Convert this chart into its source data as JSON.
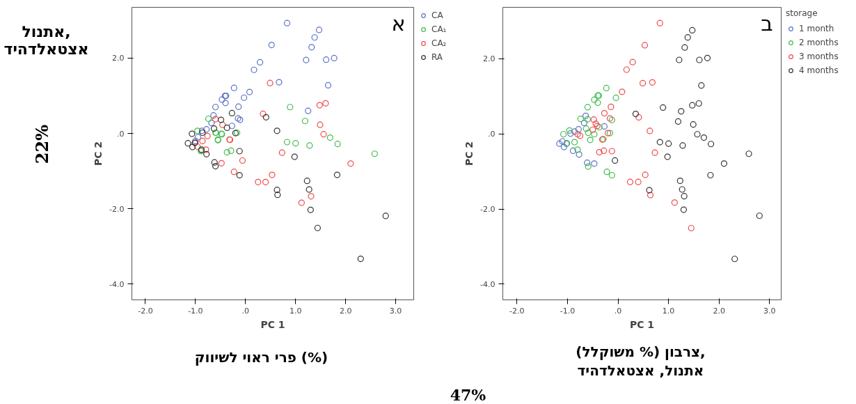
{
  "chart_data": [
    {
      "type": "scatter",
      "title": "א",
      "xlabel": "PC 1",
      "ylabel": "PC 2",
      "marker": "circle",
      "grid": false,
      "legend": "right",
      "xlim": [
        -2.27,
        3.36
      ],
      "ylim": [
        -4.42,
        3.35
      ],
      "xticks": [
        {
          "value": -2,
          "label": "-2.0"
        },
        {
          "value": -1,
          "label": "-1.0"
        },
        {
          "value": 0,
          "label": ".0"
        },
        {
          "value": 1,
          "label": "1.0"
        },
        {
          "value": 2,
          "label": "2.0"
        },
        {
          "value": 3,
          "label": "3.0"
        }
      ],
      "yticks": [
        {
          "value": -4,
          "label": "-4.0"
        },
        {
          "value": -2,
          "label": "-2.0"
        },
        {
          "value": 0,
          "label": ".0"
        },
        {
          "value": 2,
          "label": "2.0"
        }
      ],
      "annotations": [
        "אתנול,\nאצטאלדהיד",
        "22%",
        "פרי ראוי לשיווק (%)",
        "47%"
      ],
      "series": [
        {
          "name": "CA",
          "color": "#5a6fc6",
          "x": [
            0.83,
            1.47,
            1.38,
            0.52,
            1.32,
            1.21,
            1.61,
            1.77,
            0.29,
            0.17,
            0.67,
            1.65,
            -0.23,
            0.08,
            -0.39,
            -0.41,
            -0.47,
            -0.03,
            -0.4,
            -0.6,
            -0.14,
            1.25,
            -0.64,
            -0.15,
            -0.11,
            -0.68,
            -0.27,
            -0.78,
            -0.87,
            -1.0,
            -0.95
          ],
          "values": [
            2.93,
            2.75,
            2.55,
            2.35,
            2.29,
            1.95,
            1.96,
            2.0,
            1.89,
            1.69,
            1.36,
            1.28,
            1.21,
            1.1,
            1.0,
            1.0,
            0.9,
            0.95,
            0.81,
            0.7,
            0.71,
            0.6,
            0.48,
            0.4,
            0.36,
            0.28,
            0.2,
            0.11,
            0.07,
            -0.2,
            -0.1
          ]
        },
        {
          "name": "CA₁",
          "color": "#3dbb4c",
          "x": [
            0.89,
            1.19,
            -0.74,
            1.69,
            0.83,
            1.0,
            1.28,
            1.84,
            2.58,
            -0.37,
            -0.29,
            -0.55,
            -0.89,
            -0.55,
            -0.47,
            -0.6,
            -0.17,
            -0.96,
            -0.88,
            -0.48,
            -0.59
          ],
          "values": [
            0.7,
            0.33,
            0.39,
            -0.11,
            -0.23,
            -0.26,
            -0.32,
            -0.28,
            -0.54,
            -0.5,
            -0.46,
            -0.18,
            -0.47,
            -0.16,
            -0.02,
            0.02,
            0.02,
            0.07,
            -0.45,
            -0.01,
            0.02
          ]
        },
        {
          "name": "CA₂",
          "color": "#f04848",
          "x": [
            0.49,
            1.48,
            1.6,
            0.35,
            1.49,
            1.56,
            -0.6,
            -0.46,
            -0.76,
            -0.31,
            -0.86,
            0.73,
            2.1,
            -0.48,
            -0.06,
            -0.23,
            0.53,
            0.25,
            0.4,
            1.31,
            1.12,
            -0.79,
            -1.01,
            -0.96,
            -0.32
          ],
          "values": [
            1.34,
            0.75,
            0.8,
            0.52,
            0.23,
            -0.02,
            0.38,
            0.23,
            -0.07,
            -0.17,
            -0.2,
            -0.51,
            -0.8,
            -0.79,
            -0.72,
            -1.02,
            -1.1,
            -1.29,
            -1.29,
            -1.67,
            -1.84,
            -0.43,
            -0.25,
            -0.35,
            -0.16
          ]
        },
        {
          "name": "RA",
          "color": "#333333",
          "x": [
            -0.27,
            0.41,
            -0.49,
            0.63,
            -0.63,
            -0.37,
            -0.2,
            -0.86,
            -1.07,
            -1.15,
            -1.01,
            -1.06,
            -0.88,
            -0.78,
            -0.12,
            0.98,
            -0.62,
            -0.6,
            -0.12,
            1.83,
            1.23,
            1.27,
            0.63,
            0.64,
            1.3,
            1.44,
            2.8,
            2.3
          ],
          "values": [
            0.54,
            0.43,
            0.36,
            0.07,
            0.13,
            0.15,
            0.01,
            0.02,
            -0.01,
            -0.26,
            -0.25,
            -0.36,
            -0.43,
            -0.55,
            -0.47,
            -0.62,
            -0.77,
            -0.87,
            -1.11,
            -1.1,
            -1.26,
            -1.49,
            -1.5,
            -1.63,
            -2.03,
            -2.51,
            -2.19,
            -3.33
          ]
        }
      ]
    },
    {
      "type": "scatter",
      "title": "ב",
      "xlabel": "PC 1",
      "ylabel": "PC 2",
      "legend_title": "storage",
      "marker": "circle",
      "grid": false,
      "legend": "right",
      "xlim": [
        -2.28,
        3.23
      ],
      "ylim": [
        -4.42,
        3.37
      ],
      "xticks": [
        {
          "value": -2,
          "label": "-2.0"
        },
        {
          "value": -1,
          "label": "-1.0"
        },
        {
          "value": 0,
          "label": ".0"
        },
        {
          "value": 1,
          "label": "1.0"
        },
        {
          "value": 2,
          "label": "2.0"
        },
        {
          "value": 3,
          "label": "3.0"
        }
      ],
      "yticks": [
        {
          "value": -4,
          "label": "-4.0"
        },
        {
          "value": -2,
          "label": "-2.0"
        },
        {
          "value": 0,
          "label": ".0"
        },
        {
          "value": 2,
          "label": "2.0"
        }
      ],
      "annotations": [
        "צרבון (% משוקלל),\nאתנול, אצטאלדהיד"
      ],
      "series": [
        {
          "name": "1 month",
          "color": "#5a6fc6",
          "x": [
            -0.64,
            -0.67,
            -0.27,
            -0.78,
            -0.86,
            -0.94,
            -1.16,
            -1.07,
            -1.1,
            -1.02,
            -0.89,
            -0.77,
            -0.61,
            -0.47
          ],
          "values": [
            0.48,
            0.29,
            0.2,
            0.12,
            0.06,
            0.01,
            -0.26,
            -0.35,
            -0.2,
            -0.26,
            -0.45,
            -0.55,
            -0.77,
            -0.79
          ]
        },
        {
          "name": "2 months",
          "color": "#3dbb4c",
          "x": [
            -0.23,
            -0.4,
            -0.38,
            -0.04,
            -0.47,
            -0.4,
            -0.6,
            -0.74,
            -0.6,
            -0.12,
            -0.63,
            -0.59,
            -0.47,
            -0.37,
            -0.16,
            -0.55,
            -0.29,
            -0.96,
            -1.08,
            -0.8,
            -0.86,
            -0.59,
            -0.22,
            -0.12,
            -1.01
          ],
          "values": [
            1.22,
            1.02,
            1.02,
            0.96,
            0.91,
            0.83,
            0.71,
            0.4,
            0.39,
            0.37,
            0.14,
            0.03,
            -0.01,
            0.18,
            0.02,
            -0.16,
            -0.14,
            0.09,
            -0.01,
            -0.42,
            -0.22,
            -0.87,
            -1.01,
            -1.1,
            -0.25
          ]
        },
        {
          "name": "3 months",
          "color": "#f04848",
          "x": [
            0.83,
            0.53,
            0.29,
            0.17,
            0.49,
            0.68,
            0.08,
            -0.14,
            -0.27,
            -0.16,
            0.41,
            -0.48,
            -0.44,
            -0.41,
            0.63,
            -0.2,
            -0.5,
            -0.8,
            -0.75,
            -0.31,
            -0.37,
            -0.28,
            -0.12,
            0.73,
            0.54,
            0.24,
            0.4,
            0.64,
            1.12,
            1.45
          ],
          "values": [
            2.95,
            2.36,
            1.91,
            1.71,
            1.35,
            1.37,
            1.12,
            0.72,
            0.55,
            0.41,
            0.44,
            0.38,
            0.27,
            0.21,
            0.08,
            0.02,
            0.11,
            -0.01,
            -0.05,
            -0.15,
            -0.49,
            -0.45,
            -0.46,
            -0.5,
            -1.09,
            -1.28,
            -1.28,
            -1.63,
            -1.83,
            -2.51
          ]
        },
        {
          "name": "4 months",
          "color": "#333333",
          "x": [
            1.47,
            1.38,
            1.32,
            1.21,
            1.61,
            1.77,
            1.65,
            0.89,
            1.47,
            1.6,
            0.35,
            1.25,
            1.19,
            1.49,
            1.57,
            1.7,
            0.83,
            1.0,
            1.28,
            1.84,
            2.59,
            0.98,
            2.1,
            -0.06,
            1.83,
            1.23,
            1.27,
            1.31,
            0.62,
            1.3,
            2.8,
            2.31
          ],
          "values": [
            2.76,
            2.57,
            2.3,
            1.97,
            1.97,
            2.02,
            1.29,
            0.7,
            0.76,
            0.81,
            0.53,
            0.6,
            0.33,
            0.25,
            -0.01,
            -0.1,
            -0.22,
            -0.26,
            -0.31,
            -0.27,
            -0.53,
            -0.61,
            -0.79,
            -0.71,
            -1.1,
            -1.25,
            -1.48,
            -1.66,
            -1.5,
            -2.02,
            -2.18,
            -3.33
          ]
        }
      ]
    }
  ]
}
